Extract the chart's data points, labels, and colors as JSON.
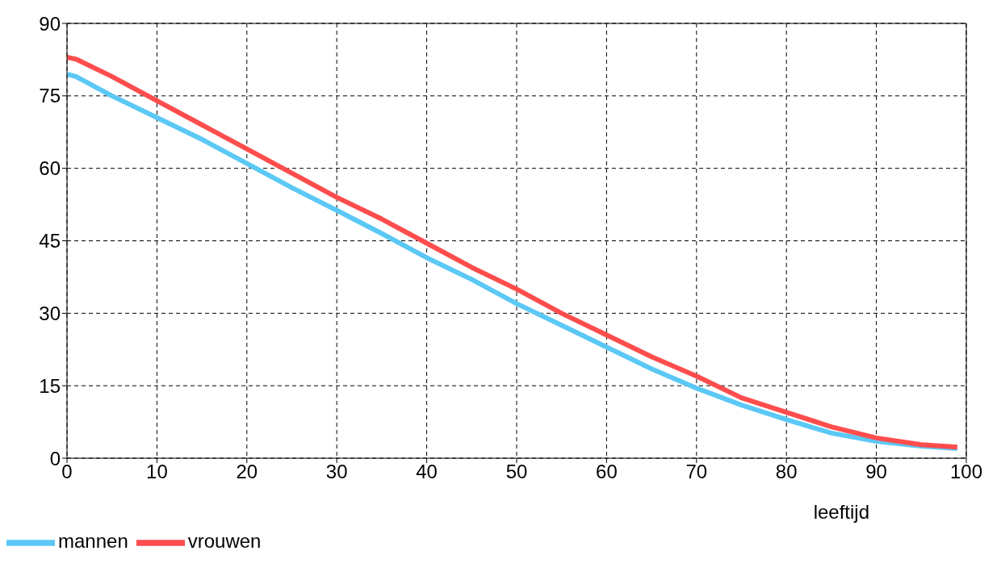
{
  "chart_data": {
    "type": "line",
    "xlabel": "leeftijd",
    "xlim": [
      0,
      100
    ],
    "xticks": [
      0,
      10,
      20,
      30,
      40,
      50,
      60,
      70,
      80,
      90,
      100
    ],
    "ylim": [
      0,
      90
    ],
    "yticks": [
      0,
      15,
      30,
      45,
      60,
      75,
      90
    ],
    "grid": true,
    "legend": "bottom left",
    "line_style": "solid",
    "x": [
      0,
      1,
      5,
      10,
      15,
      20,
      25,
      30,
      35,
      40,
      45,
      50,
      55,
      60,
      65,
      70,
      75,
      80,
      85,
      90,
      95,
      99
    ],
    "series": [
      {
        "name": "mannen",
        "color": "#5bc8f5",
        "values": [
          79.5,
          79,
          75,
          70.5,
          66,
          61,
          56,
          51.3,
          46.5,
          41.5,
          37,
          32,
          27.5,
          23,
          18.5,
          14.5,
          11,
          8,
          5.2,
          3.5,
          2.5,
          2
        ]
      },
      {
        "name": "vrouwen",
        "color": "#ff4d4d",
        "values": [
          83,
          82.6,
          79,
          74,
          69,
          64,
          59,
          54,
          49.5,
          44.5,
          39.5,
          35,
          30,
          25.5,
          21,
          17,
          12.5,
          9.5,
          6.5,
          4.2,
          2.8,
          2.3
        ]
      }
    ]
  }
}
